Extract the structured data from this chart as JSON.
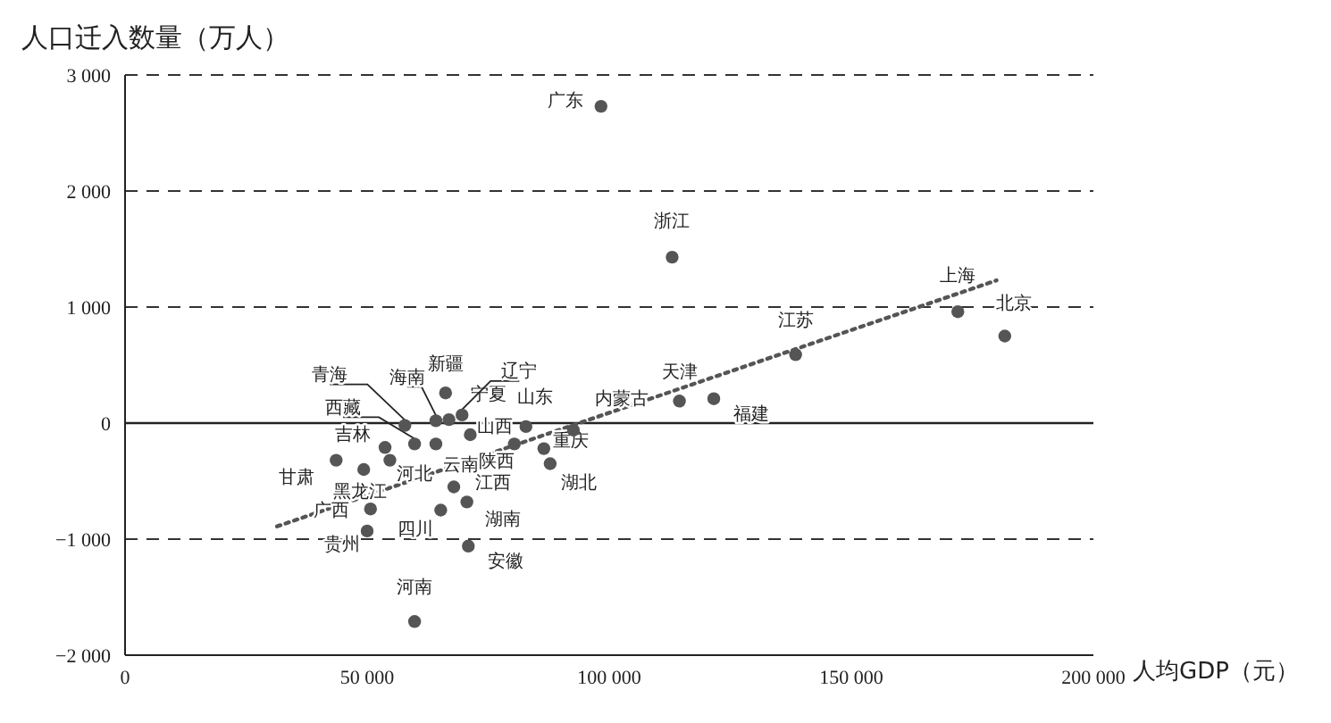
{
  "chart_data": {
    "type": "scatter",
    "xlabel": "人均GDP（元）",
    "ylabel": "人口迁入数量（万人）",
    "xlim": [
      0,
      200000
    ],
    "ylim": [
      -2000,
      3000
    ],
    "xticks": [
      {
        "value": 0,
        "label": "0"
      },
      {
        "value": 50000,
        "label": "50 000"
      },
      {
        "value": 100000,
        "label": "100 000"
      },
      {
        "value": 150000,
        "label": "150 000"
      },
      {
        "value": 200000,
        "label": "200 000"
      }
    ],
    "yticks": [
      {
        "value": -2000,
        "label": "−2 000"
      },
      {
        "value": -1000,
        "label": "−1 000"
      },
      0,
      {
        "value": 1000,
        "label": "1 000"
      },
      {
        "value": 2000,
        "label": "2 000"
      },
      {
        "value": 3000,
        "label": "3 000"
      }
    ],
    "grid": "y",
    "marker": "circle",
    "ref_lines": [
      {
        "axis": "y",
        "value": 0,
        "color": "#222222",
        "line_style": "solid"
      }
    ],
    "series": [
      {
        "color": "#555555",
        "x": [
          98300,
          113000,
          138500,
          172000,
          181700,
          114500,
          121600,
          92600,
          66200,
          57800,
          59800,
          64200,
          66900,
          69600,
          53700,
          43600,
          49300,
          54700,
          50700,
          50000,
          65200,
          67900,
          70600,
          70900,
          59800,
          71300,
          64200,
          80400,
          82800,
          86500,
          87800
        ],
        "values": [
          2730,
          1430,
          590,
          960,
          750,
          190,
          210,
          -60,
          260,
          -20,
          -180,
          20,
          30,
          70,
          -210,
          -320,
          -400,
          -320,
          -740,
          -930,
          -750,
          -550,
          -680,
          -1060,
          -1710,
          -100,
          -180,
          -180,
          -30,
          -220,
          -350
        ]
      },
      {
        "type": "line",
        "color": "#555555",
        "marker": "none",
        "line_style": "dotted",
        "x": [
          31400,
          180000
        ],
        "values": [
          -890,
          1230
        ]
      }
    ],
    "annotations": [
      {
        "text": "广东",
        "x": 98300,
        "y": 2730
      },
      {
        "text": "浙江",
        "x": 113000,
        "y": 1430
      },
      {
        "text": "江苏",
        "x": 138500,
        "y": 590
      },
      {
        "text": "上海",
        "x": 172000,
        "y": 960
      },
      {
        "text": "北京",
        "x": 181700,
        "y": 750
      },
      {
        "text": "天津",
        "x": 114500,
        "y": 190
      },
      {
        "text": "福建",
        "x": 121600,
        "y": 210
      },
      {
        "text": "内蒙古",
        "x": 92600,
        "y": -60
      },
      {
        "text": "新疆",
        "x": 66200,
        "y": 260
      },
      {
        "text": "青海",
        "x": 57800,
        "y": -20
      },
      {
        "text": "西藏",
        "x": 59800,
        "y": -180
      },
      {
        "text": "海南",
        "x": 64200,
        "y": 20
      },
      {
        "text": "宁夏",
        "x": 66900,
        "y": 30
      },
      {
        "text": "辽宁",
        "x": 69600,
        "y": 70
      },
      {
        "text": "吉林",
        "x": 53700,
        "y": -210
      },
      {
        "text": "甘肃",
        "x": 43600,
        "y": -320
      },
      {
        "text": "黑龙江",
        "x": 49300,
        "y": -400
      },
      {
        "text": "河北",
        "x": 54700,
        "y": -320
      },
      {
        "text": "广西",
        "x": 50700,
        "y": -740
      },
      {
        "text": "贵州",
        "x": 50000,
        "y": -930
      },
      {
        "text": "四川",
        "x": 65200,
        "y": -750
      },
      {
        "text": "江西",
        "x": 67900,
        "y": -550
      },
      {
        "text": "湖南",
        "x": 70600,
        "y": -680
      },
      {
        "text": "安徽",
        "x": 70900,
        "y": -1060
      },
      {
        "text": "河南",
        "x": 59800,
        "y": -1710
      },
      {
        "text": "山西",
        "x": 71300,
        "y": -100
      },
      {
        "text": "云南",
        "x": 64200,
        "y": -180
      },
      {
        "text": "陕西",
        "x": 80400,
        "y": -180
      },
      {
        "text": "山东",
        "x": 82800,
        "y": -30
      },
      {
        "text": "重庆",
        "x": 86500,
        "y": -220
      },
      {
        "text": "湖北",
        "x": 87800,
        "y": -350
      }
    ]
  }
}
